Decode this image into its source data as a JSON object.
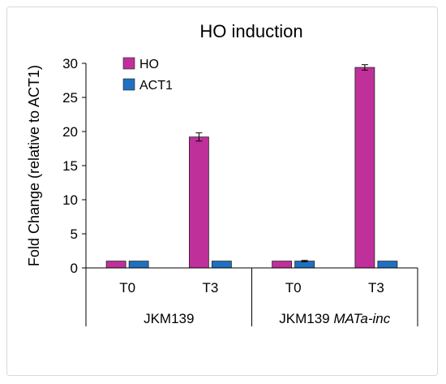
{
  "chart_data": {
    "type": "bar",
    "title": "HO induction",
    "ylabel": "Fold Change (relative to ACT1)",
    "xlabel": "",
    "ylim": [
      0,
      30
    ],
    "yticks": [
      0,
      5,
      10,
      15,
      20,
      25,
      30
    ],
    "groups": [
      {
        "label": "JKM139",
        "label_suffix": "",
        "categories": [
          "T0",
          "T3"
        ]
      },
      {
        "label": "JKM139 ",
        "label_suffix": "MATa-inc",
        "categories": [
          "T0",
          "T3"
        ]
      }
    ],
    "categories": [
      "T0",
      "T3",
      "T0",
      "T3"
    ],
    "series": [
      {
        "name": "HO",
        "color": "#c0309b",
        "values": [
          1.0,
          19.2,
          1.0,
          29.4
        ],
        "errors": [
          0.0,
          0.6,
          0.0,
          0.4
        ]
      },
      {
        "name": "ACT1",
        "color": "#1f70c0",
        "values": [
          1.0,
          1.0,
          1.0,
          1.0
        ],
        "errors": [
          0.0,
          0.0,
          0.1,
          0.0
        ]
      }
    ],
    "grid": false,
    "legend": "top-left"
  }
}
